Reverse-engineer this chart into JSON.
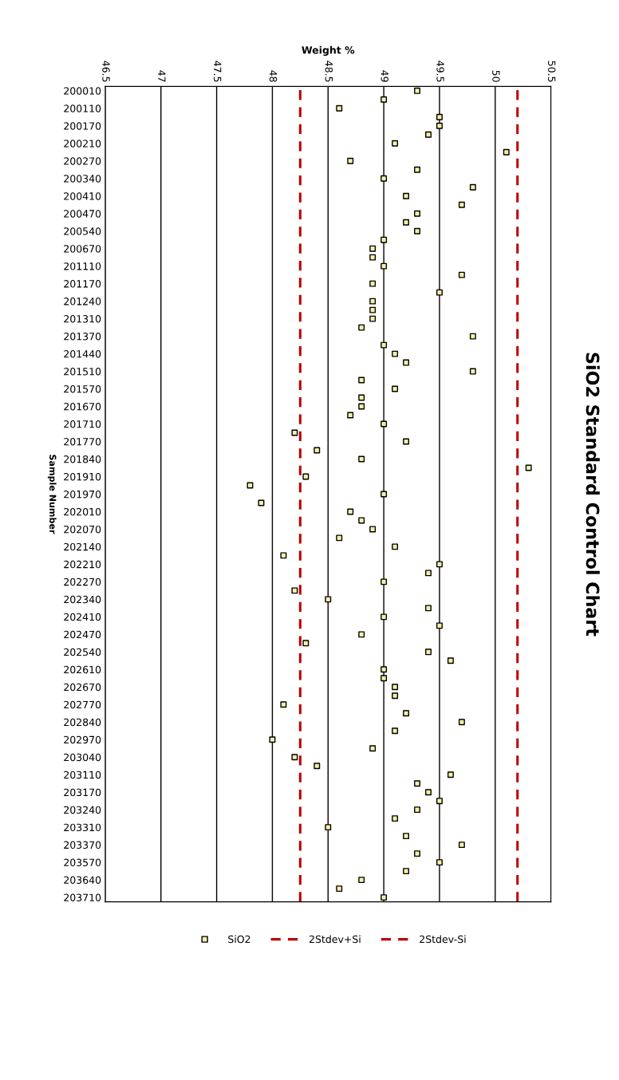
{
  "chart_data": {
    "type": "scatter",
    "orientation": "horizontal",
    "title": "SiO2 Standard Control Chart",
    "xlabel": "Weight %",
    "ylabel": "Sample Number",
    "categories": [
      "200010",
      null,
      "200110",
      null,
      "200170",
      null,
      "200210",
      null,
      "200270",
      null,
      "200340",
      null,
      "200410",
      null,
      "200470",
      null,
      "200540",
      null,
      "200670",
      null,
      "201110",
      null,
      "201170",
      null,
      "201240",
      null,
      "201310",
      null,
      "201370",
      null,
      "201440",
      null,
      "201510",
      null,
      "201570",
      null,
      "201670",
      null,
      "201710",
      null,
      "201770",
      null,
      "201840",
      null,
      "201910",
      null,
      "201970",
      null,
      "202010",
      null,
      "202070",
      null,
      "202140",
      null,
      "202210",
      null,
      "202270",
      null,
      "202340",
      null,
      "202410",
      null,
      "202470",
      null,
      "202540",
      null,
      "202610",
      null,
      "202670",
      null,
      "202770",
      null,
      "202840",
      null,
      "202970",
      null,
      "203040",
      null,
      "203110",
      null,
      "203170",
      null,
      "203240",
      null,
      "203310",
      null,
      "203370",
      null,
      "203570",
      null,
      "203640",
      null,
      "203710"
    ],
    "series": [
      {
        "name": "SiO2",
        "color": "#f4f0a8",
        "values": [
          49.3,
          49.0,
          48.6,
          49.5,
          49.5,
          49.4,
          49.1,
          50.1,
          48.7,
          49.3,
          49.0,
          49.8,
          49.2,
          49.7,
          49.3,
          49.2,
          49.3,
          49.0,
          48.9,
          48.9,
          49.0,
          49.7,
          48.9,
          49.5,
          48.9,
          48.9,
          48.9,
          48.8,
          49.8,
          49.0,
          49.1,
          49.2,
          49.8,
          48.8,
          49.1,
          48.8,
          48.8,
          48.7,
          49.0,
          48.2,
          49.2,
          48.4,
          48.8,
          50.3,
          48.3,
          47.8,
          49.0,
          47.9,
          48.7,
          48.8,
          48.9,
          48.6,
          49.1,
          48.1,
          49.5,
          49.4,
          49.0,
          48.2,
          48.5,
          49.4,
          49.0,
          49.5,
          48.8,
          48.3,
          49.4,
          49.6,
          49.0,
          49.0,
          49.1,
          49.1,
          48.1,
          49.2,
          49.7,
          49.1,
          48.0,
          48.9,
          48.2,
          48.4,
          49.6,
          49.3,
          49.4,
          49.5,
          49.3,
          49.1,
          48.5,
          49.2,
          49.7,
          49.3,
          49.5,
          49.2,
          48.8,
          48.6,
          49.0
        ]
      }
    ],
    "ref_lines": [
      {
        "axis": "x",
        "value": 50.2,
        "label": "2Stdev+Si",
        "color": "#c00000",
        "line_style": "dashed"
      },
      {
        "axis": "x",
        "value": 48.25,
        "label": "2Stdev-Si",
        "color": "#c00000",
        "line_style": "dashed"
      }
    ],
    "xlim": [
      46.5,
      50.5
    ],
    "xticks": [
      46.5,
      47,
      47.5,
      48,
      48.5,
      49,
      49.5,
      50,
      50.5
    ],
    "grid": "x",
    "legend": "bottom",
    "marker": "square"
  }
}
